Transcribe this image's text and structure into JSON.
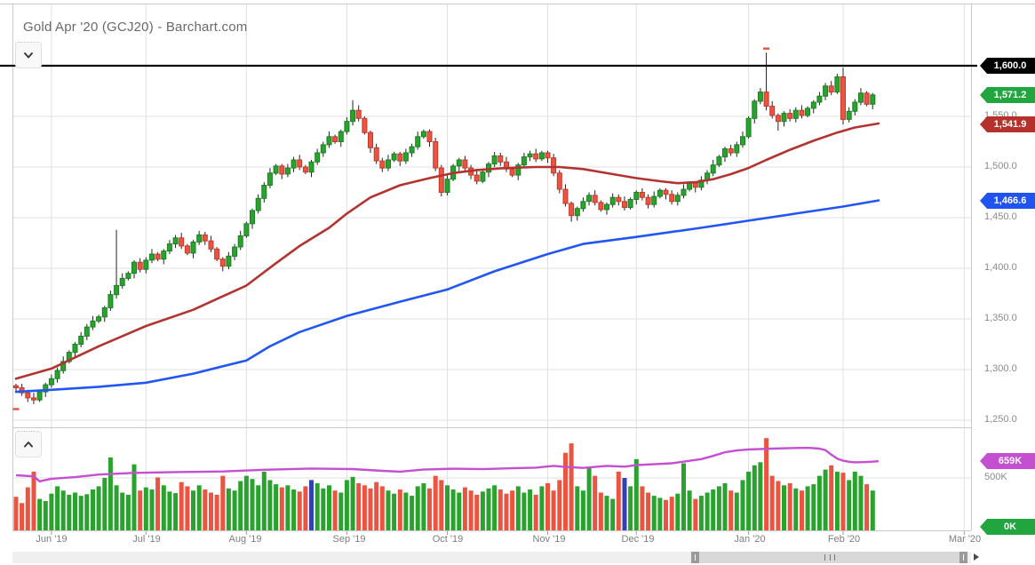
{
  "header": {
    "title": "Gold Apr '20 (GCJ20) - Barchart.com"
  },
  "chart_data": {
    "type": "candlestick",
    "title": "Gold Apr '20 (GCJ20) - Barchart.com",
    "symbol": "GCJ20",
    "colors": {
      "candle_up": "#29a32e",
      "candle_up_border": "#1b7e22",
      "candle_down": "#ea5440",
      "candle_down_border": "#c2392b",
      "wick": "#222222",
      "ma_fast": "#b23431",
      "ma_slow": "#2256f2",
      "open_interest_line": "#c44fd0",
      "volume_blue": "#3340b5",
      "grid": "#e0e0e0",
      "border": "#c9c9c9",
      "level_line": "#0a0a0a",
      "marker": "#e8503a",
      "tag_level": "#000000",
      "tag_last": "#21a53f",
      "tag_ma_fast": "#b5312c",
      "tag_ma_slow": "#2053f0",
      "tag_oi": "#c44fd0",
      "tag_vol": "#21a53f"
    },
    "y_axis": {
      "ticks": [
        "1,550.0",
        "1,500.0",
        "1,450.0",
        "1,400.0",
        "1,350.0",
        "1,300.0",
        "1,250.0"
      ],
      "tick_values": [
        1550,
        1500,
        1450,
        1400,
        1350,
        1300,
        1250
      ],
      "ylim": [
        1243,
        1620
      ]
    },
    "x_axis": {
      "labels": [
        "Jun '19",
        "Jul '19",
        "Aug '19",
        "Sep '19",
        "Oct '19",
        "Nov '19",
        "Dec '19",
        "Jan '20",
        "Feb '20",
        "Mar '20"
      ],
      "month_indices": [
        6,
        22,
        39,
        56,
        73,
        90,
        105,
        124,
        140,
        160.5
      ]
    },
    "volume_axis": {
      "tick_label": "500K",
      "tick_value": 500
    },
    "horizontal_line": {
      "value": 1600,
      "label": "1,600.0"
    },
    "last_price": {
      "value": 1571.2,
      "label": "1,571.2"
    },
    "ma_fast": {
      "label": "1,541.9",
      "value": 1541.9,
      "points": [
        [
          0,
          1291
        ],
        [
          6,
          1301
        ],
        [
          14,
          1323
        ],
        [
          22,
          1343
        ],
        [
          30,
          1359
        ],
        [
          39,
          1383
        ],
        [
          44,
          1405
        ],
        [
          48,
          1422
        ],
        [
          53,
          1440
        ],
        [
          56,
          1454
        ],
        [
          60,
          1470
        ],
        [
          65,
          1482
        ],
        [
          70,
          1489
        ],
        [
          74,
          1494
        ],
        [
          78,
          1497
        ],
        [
          83,
          1499
        ],
        [
          88,
          1500
        ],
        [
          92,
          1500
        ],
        [
          96,
          1498
        ],
        [
          101,
          1493
        ],
        [
          105,
          1489
        ],
        [
          109,
          1486
        ],
        [
          112,
          1484
        ],
        [
          115,
          1485
        ],
        [
          118,
          1488
        ],
        [
          121,
          1493
        ],
        [
          124,
          1499
        ],
        [
          127,
          1507
        ],
        [
          131,
          1517
        ],
        [
          135,
          1526
        ],
        [
          139,
          1534
        ],
        [
          142,
          1539
        ],
        [
          146,
          1543
        ]
      ]
    },
    "ma_slow": {
      "label": "1,466.6",
      "value": 1466.6,
      "points": [
        [
          0,
          1278
        ],
        [
          6,
          1280
        ],
        [
          14,
          1283
        ],
        [
          22,
          1287
        ],
        [
          30,
          1296
        ],
        [
          39,
          1309
        ],
        [
          43,
          1323
        ],
        [
          48,
          1337
        ],
        [
          56,
          1353
        ],
        [
          65,
          1367
        ],
        [
          73,
          1379
        ],
        [
          81,
          1397
        ],
        [
          90,
          1414
        ],
        [
          96,
          1424
        ],
        [
          105,
          1431
        ],
        [
          116,
          1440
        ],
        [
          124,
          1447
        ],
        [
          132,
          1454
        ],
        [
          140,
          1461
        ],
        [
          146,
          1467
        ]
      ]
    },
    "open_interest": {
      "label": "659K",
      "value_k": 659,
      "points": [
        [
          0,
          525
        ],
        [
          3,
          515
        ],
        [
          4,
          468
        ],
        [
          6,
          492
        ],
        [
          10,
          508
        ],
        [
          14,
          532
        ],
        [
          20,
          548
        ],
        [
          27,
          556
        ],
        [
          35,
          562
        ],
        [
          42,
          578
        ],
        [
          50,
          590
        ],
        [
          57,
          585
        ],
        [
          62,
          568
        ],
        [
          65,
          560
        ],
        [
          69,
          580
        ],
        [
          74,
          588
        ],
        [
          79,
          584
        ],
        [
          84,
          592
        ],
        [
          88,
          598
        ],
        [
          91,
          615
        ],
        [
          93,
          605
        ],
        [
          96,
          596
        ],
        [
          100,
          615
        ],
        [
          103,
          608
        ],
        [
          105,
          622
        ],
        [
          111,
          640
        ],
        [
          116,
          680
        ],
        [
          118,
          710
        ],
        [
          120,
          745
        ],
        [
          122,
          762
        ],
        [
          124,
          772
        ],
        [
          128,
          780
        ],
        [
          131,
          785
        ],
        [
          134,
          787
        ],
        [
          136,
          780
        ],
        [
          137,
          765
        ],
        [
          138,
          722
        ],
        [
          139,
          685
        ],
        [
          140,
          664
        ],
        [
          141,
          654
        ],
        [
          142,
          649
        ],
        [
          144,
          652
        ],
        [
          146,
          659
        ]
      ]
    },
    "candles": {
      "first_open": 1284,
      "closes": [
        1282,
        1277,
        1272,
        1270,
        1278,
        1285,
        1291,
        1299,
        1308,
        1317,
        1325,
        1333,
        1342,
        1348,
        1352,
        1361,
        1374,
        1383,
        1390,
        1395,
        1406,
        1399,
        1408,
        1414,
        1409,
        1417,
        1424,
        1430,
        1422,
        1415,
        1426,
        1433,
        1427,
        1419,
        1409,
        1402,
        1412,
        1421,
        1432,
        1444,
        1457,
        1469,
        1482,
        1494,
        1501,
        1493,
        1499,
        1507,
        1500,
        1495,
        1505,
        1514,
        1522,
        1530,
        1525,
        1535,
        1545,
        1556,
        1548,
        1534,
        1519,
        1506,
        1499,
        1507,
        1513,
        1506,
        1514,
        1520,
        1530,
        1535,
        1525,
        1499,
        1475,
        1488,
        1501,
        1507,
        1499,
        1492,
        1486,
        1495,
        1503,
        1511,
        1505,
        1498,
        1492,
        1502,
        1510,
        1513,
        1508,
        1514,
        1509,
        1494,
        1478,
        1464,
        1452,
        1459,
        1466,
        1472,
        1465,
        1458,
        1463,
        1470,
        1466,
        1460,
        1468,
        1475,
        1470,
        1463,
        1471,
        1477,
        1473,
        1466,
        1472,
        1478,
        1484,
        1480,
        1487,
        1494,
        1502,
        1510,
        1518,
        1514,
        1522,
        1530,
        1548,
        1565,
        1574,
        1560,
        1551,
        1545,
        1553,
        1548,
        1556,
        1551,
        1558,
        1564,
        1570,
        1580,
        1574,
        1589,
        1547,
        1555,
        1564,
        1573,
        1562,
        1571.2
      ],
      "wick_overrides": {
        "3": {
          "low": 1266
        },
        "17": {
          "high": 1438
        },
        "57": {
          "high": 1566
        },
        "94": {
          "low": 1446
        },
        "127": {
          "high": 1613
        },
        "129": {
          "low": 1536
        },
        "139": {
          "high": 1592
        },
        "140": {
          "high": 1598
        }
      }
    },
    "volumes": {
      "unit": "K",
      "values": [
        320,
        260,
        410,
        560,
        300,
        280,
        350,
        420,
        380,
        340,
        360,
        330,
        345,
        390,
        420,
        500,
        695,
        430,
        360,
        340,
        630,
        380,
        410,
        390,
        505,
        430,
        370,
        355,
        460,
        420,
        380,
        430,
        390,
        360,
        340,
        520,
        400,
        380,
        470,
        520,
        490,
        430,
        560,
        480,
        440,
        410,
        430,
        390,
        370,
        420,
        480,
        450,
        400,
        430,
        380,
        360,
        480,
        510,
        450,
        430,
        400,
        460,
        420,
        380,
        350,
        390,
        360,
        330,
        420,
        450,
        400,
        520,
        480,
        430,
        390,
        360,
        410,
        380,
        340,
        370,
        400,
        430,
        390,
        350,
        380,
        420,
        360,
        390,
        340,
        420,
        450,
        380,
        480,
        740,
        830,
        420,
        380,
        600,
        520,
        360,
        330,
        300,
        560,
        500,
        420,
        680,
        420,
        360,
        330,
        310,
        290,
        320,
        350,
        640,
        380,
        300,
        330,
        360,
        390,
        420,
        450,
        380,
        360,
        480,
        560,
        620,
        650,
        880,
        520,
        470,
        430,
        450,
        400,
        380,
        420,
        440,
        520,
        580,
        620,
        560,
        550,
        480,
        560,
        520,
        440,
        380
      ],
      "blue_indices": [
        50,
        103
      ],
      "zero_label": "0K"
    },
    "markers": [
      {
        "index": 0,
        "price": 1262,
        "type": "low"
      },
      {
        "index": 127,
        "price": 1618,
        "type": "high"
      }
    ]
  }
}
